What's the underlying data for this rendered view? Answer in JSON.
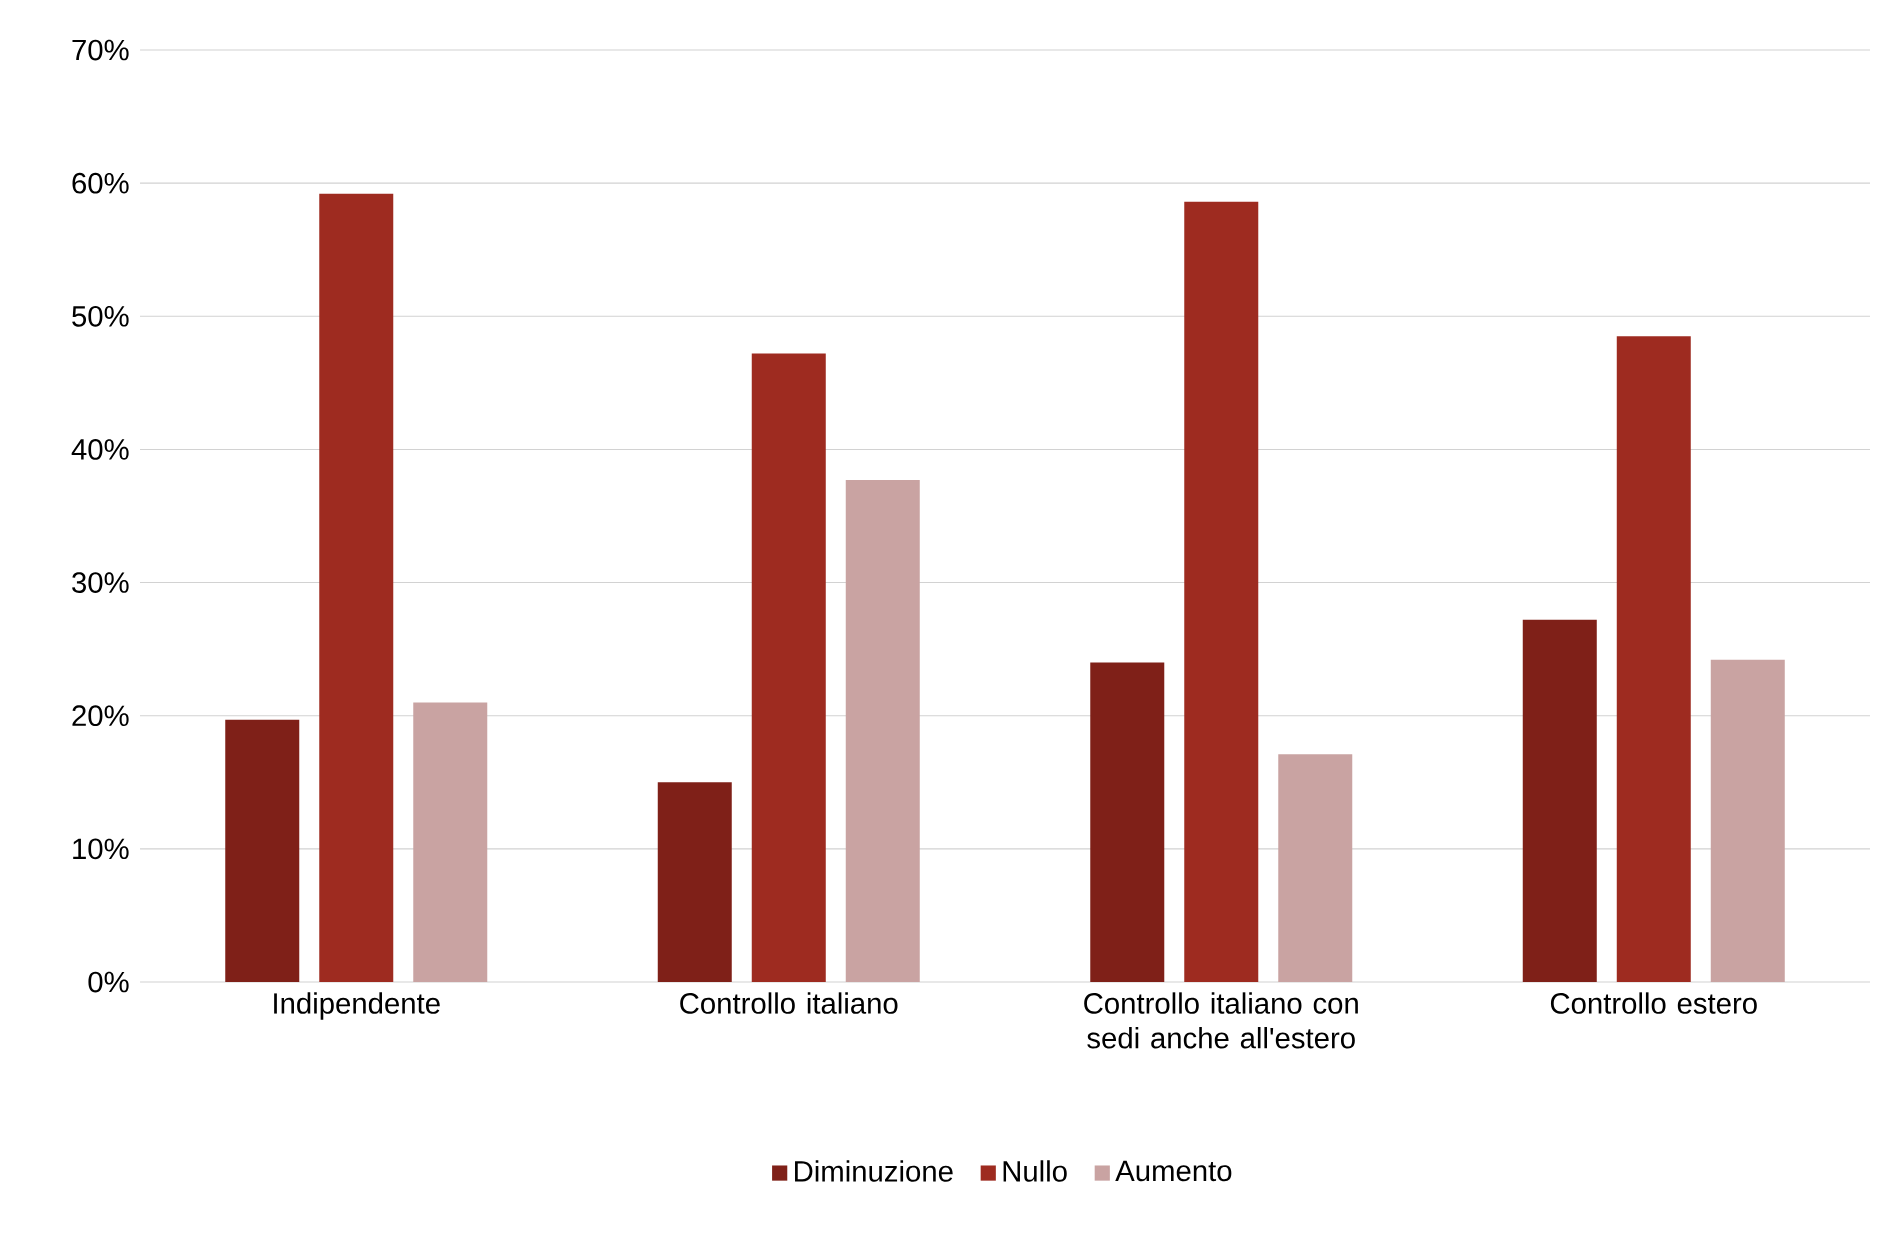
{
  "chart_data": {
    "type": "bar",
    "categories": [
      "Indipendente",
      "Controllo italiano",
      "Controllo italiano con sedi anche all'estero",
      "Controllo estero"
    ],
    "series": [
      {
        "name": "Diminuzione",
        "color": "#7f2018",
        "values": [
          19.7,
          15.0,
          24.0,
          27.2
        ]
      },
      {
        "name": "Nullo",
        "color": "#9e2b20",
        "values": [
          59.2,
          47.2,
          58.6,
          48.5
        ]
      },
      {
        "name": "Aumento",
        "color": "#c9a3a2",
        "values": [
          21.0,
          37.7,
          17.1,
          24.2
        ]
      }
    ],
    "ylim": [
      0,
      70
    ],
    "yticks": [
      {
        "value": 0,
        "label": "0%"
      },
      {
        "value": 10,
        "label": "10%"
      },
      {
        "value": 20,
        "label": "20%"
      },
      {
        "value": 30,
        "label": "30%"
      },
      {
        "value": 40,
        "label": "40%"
      },
      {
        "value": 50,
        "label": "50%"
      },
      {
        "value": 60,
        "label": "60%"
      },
      {
        "value": 70,
        "label": "70%"
      }
    ],
    "grid": "y",
    "legend": "bottom"
  }
}
